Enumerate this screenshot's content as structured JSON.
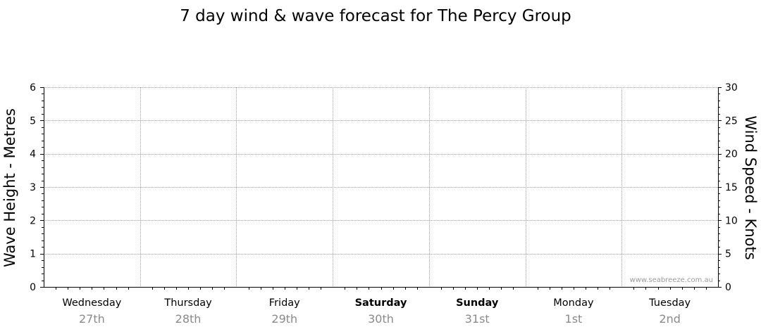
{
  "chart_data": {
    "type": "line",
    "title": "7 day wind & wave forecast for The Percy Group",
    "ylabel_left": "Wave Height - Metres",
    "ylabel_right": "Wind Speed - Knots",
    "ylim_left": [
      0,
      6
    ],
    "ylim_right": [
      0,
      30
    ],
    "yticks_left": [
      "0",
      "1",
      "2",
      "3",
      "4",
      "5",
      "6"
    ],
    "yticks_right": [
      "0",
      "5",
      "10",
      "15",
      "20",
      "25",
      "30"
    ],
    "days": [
      {
        "day": "Wednesday",
        "date": "27th",
        "weekend": false
      },
      {
        "day": "Thursday",
        "date": "28th",
        "weekend": false
      },
      {
        "day": "Friday",
        "date": "29th",
        "weekend": false
      },
      {
        "day": "Saturday",
        "date": "30th",
        "weekend": true
      },
      {
        "day": "Sunday",
        "date": "31st",
        "weekend": true
      },
      {
        "day": "Monday",
        "date": "1st",
        "weekend": false
      },
      {
        "day": "Tuesday",
        "date": "2nd",
        "weekend": false
      }
    ],
    "series": [],
    "grid": true,
    "watermark": "www.seabreeze.com.au"
  },
  "colors": {
    "grid": "#a0a0a0",
    "axis": "#000000",
    "date_text": "#8a8a8a",
    "watermark": "#9a9a9a"
  }
}
